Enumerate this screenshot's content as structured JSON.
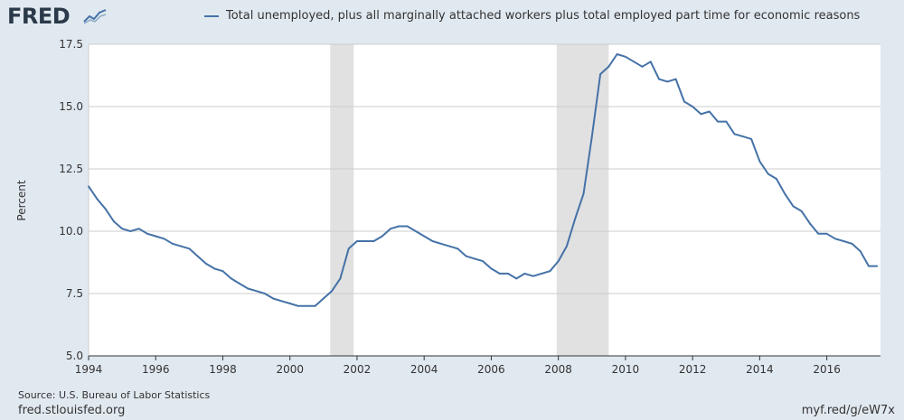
{
  "branding": {
    "logo_text": "FRED",
    "logo_icon": "fred-graph-icon"
  },
  "footer": {
    "source": "Source: U.S. Bureau of Labor Statistics",
    "site": "fred.stlouisfed.org",
    "shortlink": "myf.red/g/eW7x"
  },
  "colors": {
    "series": "#4572a7",
    "recession": "#e1e1e1",
    "background": "#e1e9f0",
    "plot": "#ffffff"
  },
  "chart_data": {
    "type": "line",
    "title": "",
    "xlabel": "",
    "ylabel": "Percent",
    "xlim": [
      1994,
      2017.6
    ],
    "ylim": [
      5.0,
      17.5
    ],
    "x_ticks": [
      "1994",
      "1996",
      "1998",
      "2000",
      "2002",
      "2004",
      "2006",
      "2008",
      "2010",
      "2012",
      "2014",
      "2016"
    ],
    "y_ticks": [
      "5.0",
      "7.5",
      "10.0",
      "12.5",
      "15.0",
      "17.5"
    ],
    "grid": true,
    "legend_placement": "top",
    "recessions": [
      [
        2001.2,
        2001.9
      ],
      [
        2007.95,
        2009.5
      ]
    ],
    "series": [
      {
        "name": "Total unemployed, plus all marginally attached workers plus total employed part time for economic reasons",
        "x": [
          1994.0,
          1994.25,
          1994.5,
          1994.75,
          1995.0,
          1995.25,
          1995.5,
          1995.75,
          1996.0,
          1996.25,
          1996.5,
          1996.75,
          1997.0,
          1997.25,
          1997.5,
          1997.75,
          1998.0,
          1998.25,
          1998.5,
          1998.75,
          1999.0,
          1999.25,
          1999.5,
          1999.75,
          2000.0,
          2000.25,
          2000.5,
          2000.75,
          2001.0,
          2001.25,
          2001.5,
          2001.75,
          2002.0,
          2002.25,
          2002.5,
          2002.75,
          2003.0,
          2003.25,
          2003.5,
          2003.75,
          2004.0,
          2004.25,
          2004.5,
          2004.75,
          2005.0,
          2005.25,
          2005.5,
          2005.75,
          2006.0,
          2006.25,
          2006.5,
          2006.75,
          2007.0,
          2007.25,
          2007.5,
          2007.75,
          2008.0,
          2008.25,
          2008.5,
          2008.75,
          2009.0,
          2009.25,
          2009.5,
          2009.75,
          2010.0,
          2010.25,
          2010.5,
          2010.75,
          2011.0,
          2011.25,
          2011.5,
          2011.75,
          2012.0,
          2012.25,
          2012.5,
          2012.75,
          2013.0,
          2013.25,
          2013.5,
          2013.75,
          2014.0,
          2014.25,
          2014.5,
          2014.75,
          2015.0,
          2015.25,
          2015.5,
          2015.75,
          2016.0,
          2016.25,
          2016.5,
          2016.75,
          2017.0,
          2017.25,
          2017.5
        ],
        "values": [
          11.8,
          11.3,
          10.9,
          10.4,
          10.1,
          10.0,
          10.1,
          9.9,
          9.8,
          9.7,
          9.5,
          9.4,
          9.3,
          9.0,
          8.7,
          8.5,
          8.4,
          8.1,
          7.9,
          7.7,
          7.6,
          7.5,
          7.3,
          7.2,
          7.1,
          7.0,
          7.0,
          7.0,
          7.3,
          7.6,
          8.1,
          9.3,
          9.6,
          9.6,
          9.6,
          9.8,
          10.1,
          10.2,
          10.2,
          10.0,
          9.8,
          9.6,
          9.5,
          9.4,
          9.3,
          9.0,
          8.9,
          8.8,
          8.5,
          8.3,
          8.3,
          8.1,
          8.3,
          8.2,
          8.3,
          8.4,
          8.8,
          9.4,
          10.5,
          11.5,
          13.8,
          16.3,
          16.6,
          17.1,
          17.0,
          16.8,
          16.6,
          16.8,
          16.1,
          16.0,
          16.1,
          15.2,
          15.0,
          14.7,
          14.8,
          14.4,
          14.4,
          13.9,
          13.8,
          13.7,
          12.8,
          12.3,
          12.1,
          11.5,
          11.0,
          10.8,
          10.3,
          9.9,
          9.9,
          9.7,
          9.6,
          9.5,
          9.2,
          8.6,
          8.6
        ]
      }
    ]
  }
}
